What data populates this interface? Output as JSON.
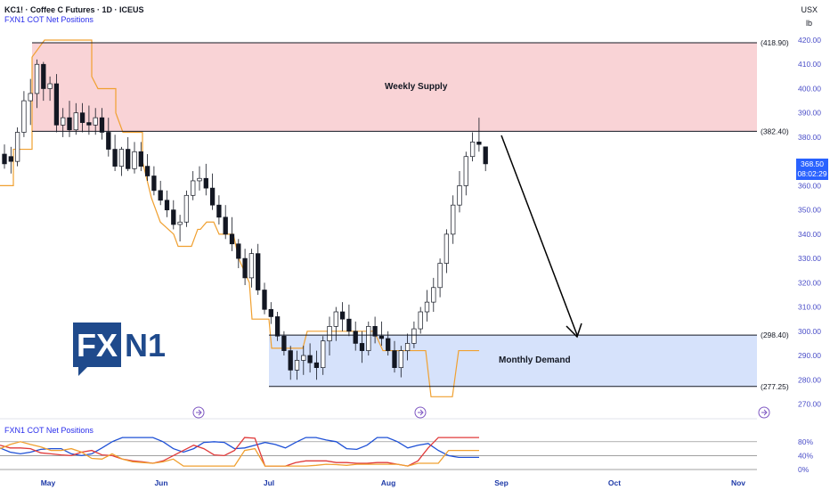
{
  "header": {
    "title": "KC1! · Coffee C Futures · 1D · ICEUS",
    "indicator_top": "FXN1 COT Net Positions",
    "indicator_bottom": "FXN1 COT Net Positions",
    "currency": "USX",
    "unit": "lb"
  },
  "zones": {
    "supply_label": "Weekly Supply",
    "demand_label": "Monthly  Demand",
    "supply_color": "#f9d3d6",
    "demand_color": "#d6e2fb"
  },
  "levels": [
    {
      "value": 418.9,
      "label": "(418.90)"
    },
    {
      "value": 382.4,
      "label": "(382.40)"
    },
    {
      "value": 298.4,
      "label": "(298.40)"
    },
    {
      "value": 277.25,
      "label": "(277.25)"
    }
  ],
  "last_price": {
    "value": "368.50",
    "countdown": "08:02:29"
  },
  "logo": {
    "text_fx": "FX",
    "text_n1": "N1",
    "color": "#1f4a8c"
  },
  "chart_data": {
    "type": "candlestick",
    "symbol": "KC1!",
    "ylim": [
      265,
      422
    ],
    "y_ticks": [
      270,
      280,
      290,
      300,
      310,
      320,
      330,
      340,
      350,
      360,
      370,
      380,
      390,
      400,
      410,
      420
    ],
    "x_ticks": [
      "May",
      "Jun",
      "Jul",
      "Aug",
      "Sep",
      "Oct",
      "Nov"
    ],
    "ohlc": [
      [
        373,
        377,
        367,
        369
      ],
      [
        372,
        376,
        365,
        370
      ],
      [
        370,
        384,
        368,
        382
      ],
      [
        382,
        399,
        380,
        395
      ],
      [
        395,
        404,
        385,
        398
      ],
      [
        398,
        412,
        392,
        410
      ],
      [
        410,
        411,
        395,
        400
      ],
      [
        400,
        405,
        395,
        402
      ],
      [
        402,
        406,
        382,
        385
      ],
      [
        385,
        392,
        380,
        388
      ],
      [
        388,
        395,
        380,
        383
      ],
      [
        383,
        394,
        381,
        390
      ],
      [
        390,
        394,
        382,
        386
      ],
      [
        386,
        393,
        381,
        385
      ],
      [
        385,
        392,
        381,
        388
      ],
      [
        388,
        392,
        379,
        382
      ],
      [
        382,
        388,
        372,
        375
      ],
      [
        375,
        381,
        366,
        368
      ],
      [
        368,
        376,
        364,
        375
      ],
      [
        375,
        380,
        366,
        367
      ],
      [
        367,
        378,
        365,
        374
      ],
      [
        374,
        378,
        366,
        368
      ],
      [
        368,
        373,
        362,
        364
      ],
      [
        364,
        368,
        356,
        358
      ],
      [
        358,
        362,
        352,
        354
      ],
      [
        354,
        358,
        347,
        350
      ],
      [
        350,
        354,
        342,
        344
      ],
      [
        344,
        348,
        337,
        345
      ],
      [
        345,
        358,
        343,
        356
      ],
      [
        356,
        366,
        354,
        362
      ],
      [
        362,
        368,
        358,
        363
      ],
      [
        363,
        369,
        356,
        359
      ],
      [
        359,
        365,
        350,
        352
      ],
      [
        352,
        356,
        344,
        347
      ],
      [
        347,
        352,
        338,
        340
      ],
      [
        340,
        347,
        333,
        336
      ],
      [
        336,
        338,
        326,
        330
      ],
      [
        330,
        334,
        319,
        322
      ],
      [
        322,
        334,
        318,
        332
      ],
      [
        332,
        336,
        315,
        317
      ],
      [
        317,
        320,
        307,
        309
      ],
      [
        309,
        312,
        303,
        306
      ],
      [
        306,
        308,
        296,
        298
      ],
      [
        298,
        300,
        290,
        292
      ],
      [
        292,
        294,
        280,
        284
      ],
      [
        284,
        292,
        280,
        288
      ],
      [
        288,
        294,
        282,
        290
      ],
      [
        290,
        295,
        283,
        287
      ],
      [
        287,
        292,
        280,
        285
      ],
      [
        285,
        298,
        282,
        296
      ],
      [
        296,
        306,
        290,
        302
      ],
      [
        302,
        310,
        296,
        308
      ],
      [
        308,
        312,
        300,
        305
      ],
      [
        305,
        311,
        298,
        300
      ],
      [
        300,
        304,
        292,
        295
      ],
      [
        295,
        300,
        287,
        292
      ],
      [
        292,
        304,
        290,
        302
      ],
      [
        302,
        306,
        295,
        298
      ],
      [
        298,
        304,
        294,
        297
      ],
      [
        297,
        300,
        290,
        292
      ],
      [
        292,
        296,
        283,
        285
      ],
      [
        285,
        294,
        281,
        292
      ],
      [
        292,
        299,
        288,
        295
      ],
      [
        295,
        304,
        293,
        301
      ],
      [
        301,
        310,
        299,
        308
      ],
      [
        308,
        317,
        304,
        312
      ],
      [
        312,
        322,
        308,
        318
      ],
      [
        318,
        330,
        314,
        328
      ],
      [
        328,
        342,
        324,
        340
      ],
      [
        340,
        356,
        336,
        352
      ],
      [
        352,
        366,
        349,
        360
      ],
      [
        360,
        374,
        356,
        372
      ],
      [
        372,
        382,
        370,
        378
      ],
      [
        378,
        388,
        374,
        377
      ],
      [
        376,
        376,
        366,
        369
      ]
    ],
    "cot_series": [
      {
        "name": "blue",
        "color": "#1e50d6",
        "values": [
          62,
          50,
          45,
          50,
          58,
          60,
          60,
          45,
          40,
          45,
          62,
          80,
          92,
          92,
          92,
          92,
          80,
          60,
          50,
          60,
          78,
          80,
          78,
          60,
          62,
          70,
          78,
          72,
          62,
          78,
          92,
          92,
          85,
          80,
          60,
          58,
          70,
          92,
          92,
          80,
          62,
          70,
          75,
          55,
          40,
          35,
          35,
          35
        ]
      },
      {
        "name": "red",
        "color": "#e03a3a",
        "values": [
          70,
          62,
          62,
          60,
          48,
          45,
          42,
          40,
          50,
          55,
          42,
          40,
          30,
          25,
          22,
          18,
          25,
          40,
          55,
          70,
          60,
          42,
          40,
          55,
          92,
          90,
          10,
          10,
          10,
          20,
          25,
          25,
          25,
          20,
          20,
          18,
          18,
          20,
          20,
          15,
          10,
          25,
          62,
          92,
          92,
          92,
          92,
          92
        ]
      },
      {
        "name": "orange",
        "color": "#f0a030",
        "values": [
          60,
          72,
          80,
          72,
          65,
          55,
          55,
          60,
          50,
          32,
          30,
          45,
          30,
          22,
          20,
          18,
          22,
          30,
          10,
          10,
          10,
          10,
          10,
          10,
          55,
          60,
          10,
          10,
          10,
          10,
          10,
          12,
          15,
          14,
          12,
          15,
          15,
          15,
          15,
          15,
          10,
          18,
          18,
          18,
          55,
          55,
          55,
          55
        ]
      }
    ],
    "cot_ticks": [
      "80%",
      "40%",
      "0%"
    ]
  }
}
